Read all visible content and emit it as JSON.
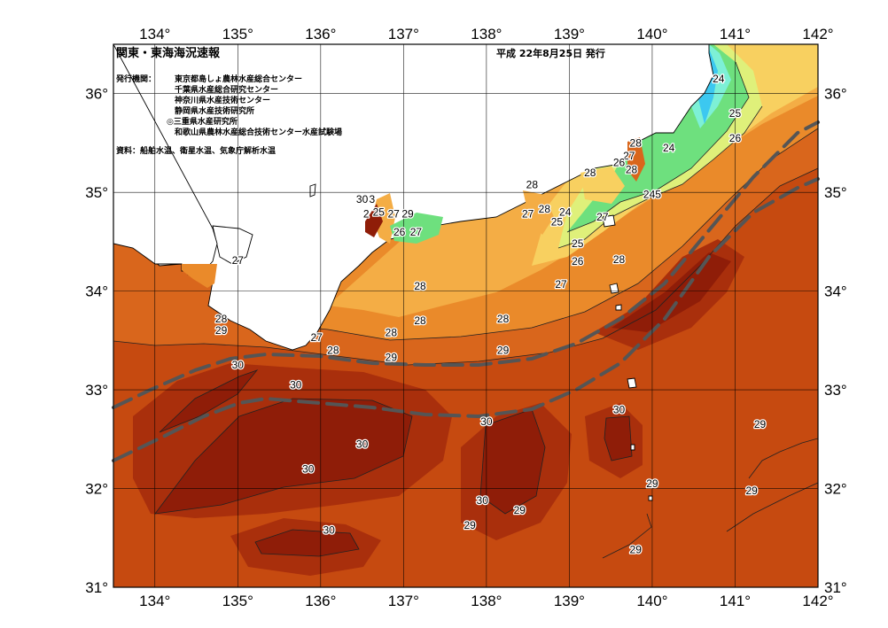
{
  "title": "関東・東海海況速報",
  "date": "平成 22年8月25日 発行",
  "issuers_label": "発行機関：",
  "issuers": [
    "東京都島しょ農林水産総合センター",
    "千葉県水産総合研究センター",
    "神奈川県水産技術センター",
    "静岡県水産技術研究所",
    "◎三重県水産研究所",
    "和歌山県農林水産総合技術センター水産試験場"
  ],
  "source": "資料：船舶水温、衛星水温、気象庁解析水温",
  "lon_ticks": [
    {
      "value": 134,
      "label": "134°"
    },
    {
      "value": 135,
      "label": "135°"
    },
    {
      "value": 136,
      "label": "136°"
    },
    {
      "value": 137,
      "label": "137°"
    },
    {
      "value": 138,
      "label": "138°"
    },
    {
      "value": 139,
      "label": "139°"
    },
    {
      "value": 140,
      "label": "140°"
    },
    {
      "value": 141,
      "label": "141°"
    },
    {
      "value": 142,
      "label": "142°"
    }
  ],
  "lat_ticks": [
    {
      "value": 36,
      "label": "36°"
    },
    {
      "value": 35,
      "label": "35°"
    },
    {
      "value": 34,
      "label": "34°"
    },
    {
      "value": 33,
      "label": "33°"
    },
    {
      "value": 32,
      "label": "32°"
    },
    {
      "value": 31,
      "label": "31°"
    }
  ],
  "extent": {
    "lon_min": 133.5,
    "lon_max": 142,
    "lat_min": 31,
    "lat_max": 36.5
  },
  "colors": {
    "t31": "#8f1d08",
    "t30": "#a92f0c",
    "t29": "#c64a10",
    "t28": "#d9661c",
    "t27": "#ea8a2a",
    "t265": "#f4ad45",
    "t26": "#f8d060",
    "t25": "#dff07a",
    "t24": "#6ee07e",
    "t23": "#7df0d6",
    "t22": "#3cc8f0",
    "land": "#ffffff",
    "kuroshio": "#555555"
  },
  "isotherm_labels": [
    {
      "text": "24",
      "lon": 140.8,
      "lat": 36.15
    },
    {
      "text": "25",
      "lon": 141.0,
      "lat": 35.8
    },
    {
      "text": "26",
      "lon": 141.0,
      "lat": 35.55
    },
    {
      "text": "24",
      "lon": 140.2,
      "lat": 35.45
    },
    {
      "text": "28",
      "lon": 139.8,
      "lat": 35.5
    },
    {
      "text": "27",
      "lon": 139.72,
      "lat": 35.37
    },
    {
      "text": "26",
      "lon": 139.6,
      "lat": 35.3
    },
    {
      "text": "28",
      "lon": 139.75,
      "lat": 35.23
    },
    {
      "text": "28",
      "lon": 139.25,
      "lat": 35.2
    },
    {
      "text": "245",
      "lon": 140.0,
      "lat": 34.98
    },
    {
      "text": "28",
      "lon": 138.55,
      "lat": 35.08
    },
    {
      "text": "28",
      "lon": 138.7,
      "lat": 34.83
    },
    {
      "text": "27",
      "lon": 138.5,
      "lat": 34.78
    },
    {
      "text": "24",
      "lon": 138.95,
      "lat": 34.8
    },
    {
      "text": "25",
      "lon": 138.85,
      "lat": 34.7
    },
    {
      "text": "27",
      "lon": 139.4,
      "lat": 34.75
    },
    {
      "text": "25",
      "lon": 139.1,
      "lat": 34.48
    },
    {
      "text": "26",
      "lon": 139.1,
      "lat": 34.3
    },
    {
      "text": "28",
      "lon": 139.6,
      "lat": 34.32
    },
    {
      "text": "27",
      "lon": 138.9,
      "lat": 34.07
    },
    {
      "text": "30",
      "lon": 136.5,
      "lat": 34.93
    },
    {
      "text": "3",
      "lon": 136.62,
      "lat": 34.93
    },
    {
      "text": "2",
      "lon": 136.55,
      "lat": 34.78
    },
    {
      "text": "25",
      "lon": 136.7,
      "lat": 34.8
    },
    {
      "text": "27",
      "lon": 136.88,
      "lat": 34.78
    },
    {
      "text": "29",
      "lon": 137.05,
      "lat": 34.78
    },
    {
      "text": "26",
      "lon": 136.95,
      "lat": 34.6
    },
    {
      "text": "27",
      "lon": 137.15,
      "lat": 34.6
    },
    {
      "text": "27",
      "lon": 135.0,
      "lat": 34.31
    },
    {
      "text": "28",
      "lon": 137.2,
      "lat": 34.05
    },
    {
      "text": "28",
      "lon": 134.8,
      "lat": 33.72
    },
    {
      "text": "29",
      "lon": 134.8,
      "lat": 33.6
    },
    {
      "text": "28",
      "lon": 137.2,
      "lat": 33.7
    },
    {
      "text": "28",
      "lon": 136.85,
      "lat": 33.58
    },
    {
      "text": "28",
      "lon": 138.2,
      "lat": 33.72
    },
    {
      "text": "27",
      "lon": 135.95,
      "lat": 33.53
    },
    {
      "text": "28",
      "lon": 136.15,
      "lat": 33.4
    },
    {
      "text": "29",
      "lon": 136.85,
      "lat": 33.33
    },
    {
      "text": "29",
      "lon": 138.2,
      "lat": 33.4
    },
    {
      "text": "30",
      "lon": 135.0,
      "lat": 33.25
    },
    {
      "text": "30",
      "lon": 135.7,
      "lat": 33.05
    },
    {
      "text": "30",
      "lon": 139.6,
      "lat": 32.8
    },
    {
      "text": "30",
      "lon": 138.0,
      "lat": 32.68
    },
    {
      "text": "29",
      "lon": 141.3,
      "lat": 32.65
    },
    {
      "text": "30",
      "lon": 136.5,
      "lat": 32.45
    },
    {
      "text": "30",
      "lon": 135.85,
      "lat": 32.2
    },
    {
      "text": "29",
      "lon": 140.0,
      "lat": 32.05
    },
    {
      "text": "29",
      "lon": 141.2,
      "lat": 31.98
    },
    {
      "text": "30",
      "lon": 137.95,
      "lat": 31.88
    },
    {
      "text": "29",
      "lon": 138.4,
      "lat": 31.78
    },
    {
      "text": "29",
      "lon": 137.8,
      "lat": 31.63
    },
    {
      "text": "30",
      "lon": 136.1,
      "lat": 31.58
    },
    {
      "text": "29",
      "lon": 139.8,
      "lat": 31.38
    }
  ]
}
